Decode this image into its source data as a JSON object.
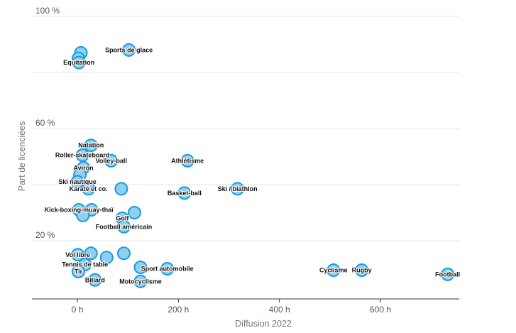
{
  "chart_data": {
    "type": "scatter",
    "xlabel": "Diffusion 2022",
    "ylabel": "Part de licenciées",
    "xlim": [
      -90,
      750
    ],
    "ylim": [
      0,
      100
    ],
    "x_ticks": [
      {
        "value": 0,
        "label": "0 h"
      },
      {
        "value": 200,
        "label": "200 h"
      },
      {
        "value": 400,
        "label": "400 h"
      },
      {
        "value": 600,
        "label": "600 h"
      }
    ],
    "y_ticks": [
      {
        "value": 20,
        "label": "20 %"
      },
      {
        "value": 40,
        "label": ""
      },
      {
        "value": 60,
        "label": "60 %"
      },
      {
        "value": 80,
        "label": ""
      },
      {
        "value": 100,
        "label": "100 %"
      }
    ],
    "grid": true,
    "colors": {
      "fill": "#8fd0f2",
      "stroke": "#1a9bdc"
    },
    "points": [
      {
        "label": "Sports de glace",
        "x": 102,
        "y": 88
      },
      {
        "label": "",
        "x": 7,
        "y": 87
      },
      {
        "label": "",
        "x": 2,
        "y": 85
      },
      {
        "label": "Equitation",
        "x": 3,
        "y": 83.5
      },
      {
        "label": "Natation",
        "x": 27,
        "y": 54
      },
      {
        "label": "Roller-skateboard",
        "x": 10,
        "y": 50.5
      },
      {
        "label": "Volley-ball",
        "x": 67,
        "y": 48.5
      },
      {
        "label": "Athlétisme",
        "x": 218,
        "y": 48.5
      },
      {
        "label": "Aviron",
        "x": 12,
        "y": 46
      },
      {
        "label": "",
        "x": 5,
        "y": 43.5
      },
      {
        "label": "Ski nautique",
        "x": 0,
        "y": 41
      },
      {
        "label": "Karaté et co.",
        "x": 22,
        "y": 38.5
      },
      {
        "label": "",
        "x": 87,
        "y": 38.5
      },
      {
        "label": "Basket-ball",
        "x": 212,
        "y": 37
      },
      {
        "label": "Ski / biathlon",
        "x": 317,
        "y": 38.5
      },
      {
        "label": "Kick-boxing-muay-thaï",
        "x": 3,
        "y": 31
      },
      {
        "label": "",
        "x": 28,
        "y": 31
      },
      {
        "label": "",
        "x": 113,
        "y": 30
      },
      {
        "label": "",
        "x": 11,
        "y": 29
      },
      {
        "label": "Golf",
        "x": 89,
        "y": 28
      },
      {
        "label": "Football américain",
        "x": 92,
        "y": 25
      },
      {
        "label": "Vol libre",
        "x": 1,
        "y": 15
      },
      {
        "label": "",
        "x": 27,
        "y": 15.5
      },
      {
        "label": "",
        "x": 58,
        "y": 14
      },
      {
        "label": "",
        "x": 92,
        "y": 15.5
      },
      {
        "label": "Tennis de table",
        "x": 15,
        "y": 11.5
      },
      {
        "label": "Sport automobile",
        "x": 178,
        "y": 10
      },
      {
        "label": "",
        "x": 125,
        "y": 10.5
      },
      {
        "label": "Tir",
        "x": 2,
        "y": 9
      },
      {
        "label": "Cyclisme",
        "x": 507,
        "y": 9.5
      },
      {
        "label": "Rugby",
        "x": 563,
        "y": 9.5
      },
      {
        "label": "Football",
        "x": 733,
        "y": 8
      },
      {
        "label": "Billard",
        "x": 35,
        "y": 6
      },
      {
        "label": "Motocyclisme",
        "x": 125,
        "y": 5.5
      }
    ]
  }
}
